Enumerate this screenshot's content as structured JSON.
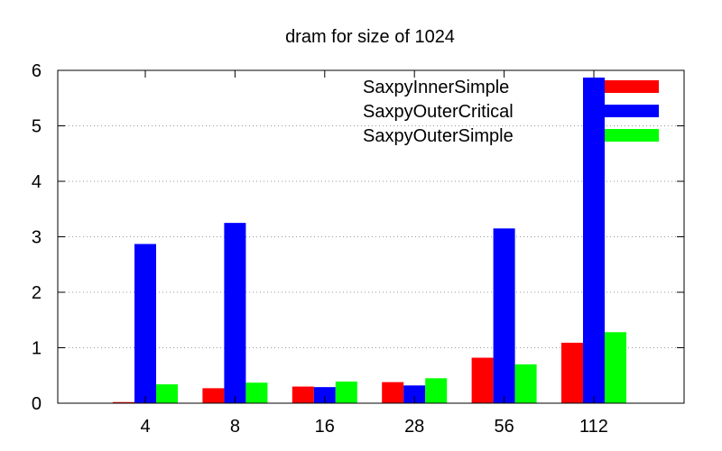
{
  "chart_data": {
    "type": "bar",
    "title": "dram for size of 1024",
    "xlabel": "",
    "ylabel": "",
    "categories": [
      "4",
      "8",
      "16",
      "28",
      "56",
      "112"
    ],
    "ylim": [
      0,
      6
    ],
    "yticks": [
      0,
      1,
      2,
      3,
      4,
      5,
      6
    ],
    "grid": true,
    "legend_position": "top-right",
    "series": [
      {
        "name": "SaxpyInnerSimple",
        "color": "#ff0000",
        "values": [
          0.02,
          0.27,
          0.3,
          0.38,
          0.82,
          1.09
        ]
      },
      {
        "name": "SaxpyOuterCritical",
        "color": "#0000ff",
        "values": [
          2.87,
          3.25,
          0.29,
          0.32,
          3.15,
          5.87
        ]
      },
      {
        "name": "SaxpyOuterSimple",
        "color": "#00ff00",
        "values": [
          0.34,
          0.37,
          0.39,
          0.45,
          0.7,
          1.28
        ]
      }
    ]
  }
}
